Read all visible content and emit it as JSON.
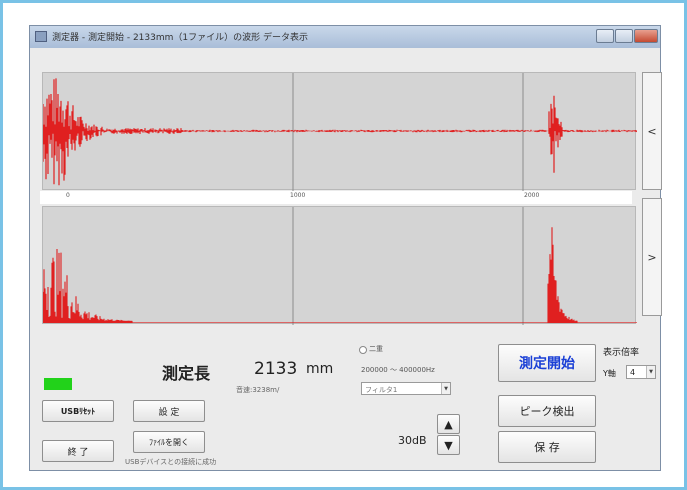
{
  "window": {
    "title": "測定器 - 測定開始 - 2133mm（1ファイル）の波形 データ表示"
  },
  "axis": {
    "ticks": [
      "0",
      "1000",
      "2000"
    ]
  },
  "nav": {
    "prev": "<",
    "next": ">"
  },
  "measurement": {
    "label": "測定長",
    "value": "2133",
    "unit": "mm",
    "speed": "音速:3238m/"
  },
  "filter": {
    "mode_label": "二重",
    "range": "200000 ～ 400000Hz",
    "select_value": "フィルタ1"
  },
  "gain": {
    "value": "30dB",
    "up": "▲",
    "down": "▼"
  },
  "buttons": {
    "usb_reset": "USBﾘｾｯﾄ",
    "settings": "設 定",
    "exit": "終 了",
    "open_file": "ﾌｧｲﾙを開く",
    "start": "測定開始",
    "peak": "ピーク検出",
    "save": "保 存"
  },
  "status": {
    "message": "USBデバイスとの接続に成功"
  },
  "display": {
    "label": "表示倍率",
    "axis_label": "Y軸",
    "value": "4"
  },
  "colors": {
    "waveform": "#e02020",
    "start_text": "#1a3fd6",
    "status_led": "#22d21a"
  }
}
